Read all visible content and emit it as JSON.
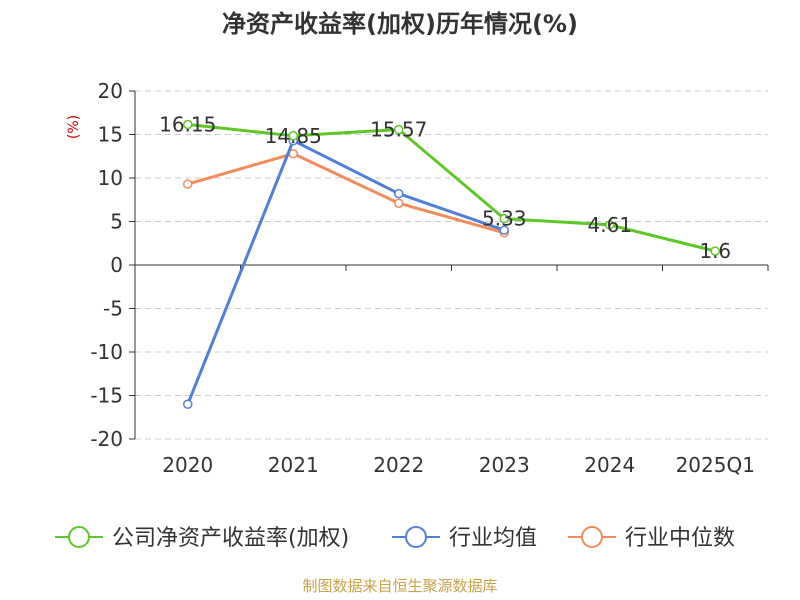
{
  "chart_data": {
    "type": "line",
    "title": "净资产收益率(加权)历年情况(%)",
    "unit_label": "(%)",
    "categories": [
      "2020",
      "2021",
      "2022",
      "2023",
      "2024",
      "2025Q1"
    ],
    "ylim": [
      -20,
      20
    ],
    "yticks": [
      20,
      15,
      10,
      5,
      0,
      -5,
      -10,
      -15,
      -20
    ],
    "ytick_labels": [
      "20",
      "15",
      "10",
      "5",
      "0",
      "-5",
      "-10",
      "-15",
      "-20"
    ],
    "grid": true,
    "legend_position": "bottom",
    "series": [
      {
        "name": "公司净资产收益率(加权)",
        "color": "#5ec726",
        "values": [
          16.15,
          14.85,
          15.57,
          5.33,
          4.61,
          1.6
        ],
        "labels": [
          "16.15",
          "14.85",
          "15.57",
          "5.33",
          "4.61",
          "1.6"
        ]
      },
      {
        "name": "行业均值",
        "color": "#4f7fd6",
        "values": [
          -16.0,
          14.3,
          8.2,
          4.0,
          null,
          null
        ]
      },
      {
        "name": "行业中位数",
        "color": "#f28c5a",
        "values": [
          9.3,
          12.8,
          7.1,
          3.7,
          null,
          null
        ]
      }
    ],
    "source": "制图数据来自恒生聚源数据库"
  }
}
